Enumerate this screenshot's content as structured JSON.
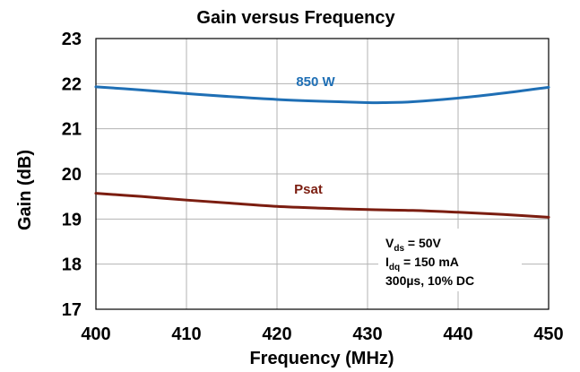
{
  "chart_data": {
    "type": "line",
    "title": "Gain versus Frequency",
    "xlabel": "Frequency (MHz)",
    "ylabel": "Gain (dB)",
    "xlim": [
      400,
      450
    ],
    "ylim": [
      17,
      23
    ],
    "x_ticks": [
      400,
      410,
      420,
      430,
      440,
      450
    ],
    "y_ticks": [
      17,
      18,
      19,
      20,
      21,
      22,
      23
    ],
    "grid": true,
    "series": [
      {
        "name": "850 W",
        "color": "#1f6fb5",
        "x": [
          400,
          405,
          410,
          415,
          420,
          425,
          430,
          432,
          435,
          440,
          445,
          450
        ],
        "y": [
          21.93,
          21.86,
          21.78,
          21.71,
          21.65,
          21.61,
          21.58,
          21.58,
          21.6,
          21.68,
          21.79,
          21.92
        ]
      },
      {
        "name": "Psat",
        "color": "#7b1d10",
        "x": [
          400,
          405,
          410,
          415,
          420,
          425,
          430,
          435,
          440,
          445,
          450
        ],
        "y": [
          19.57,
          19.5,
          19.42,
          19.35,
          19.28,
          19.24,
          19.21,
          19.19,
          19.15,
          19.1,
          19.04
        ]
      }
    ],
    "annotation": {
      "line1_main": "V",
      "line1_sub": "ds",
      "line1_rest": " = 50V",
      "line2_main": "I",
      "line2_sub": "dq",
      "line2_rest": " = 150 mA",
      "line3": "300µs, 10% DC"
    }
  }
}
